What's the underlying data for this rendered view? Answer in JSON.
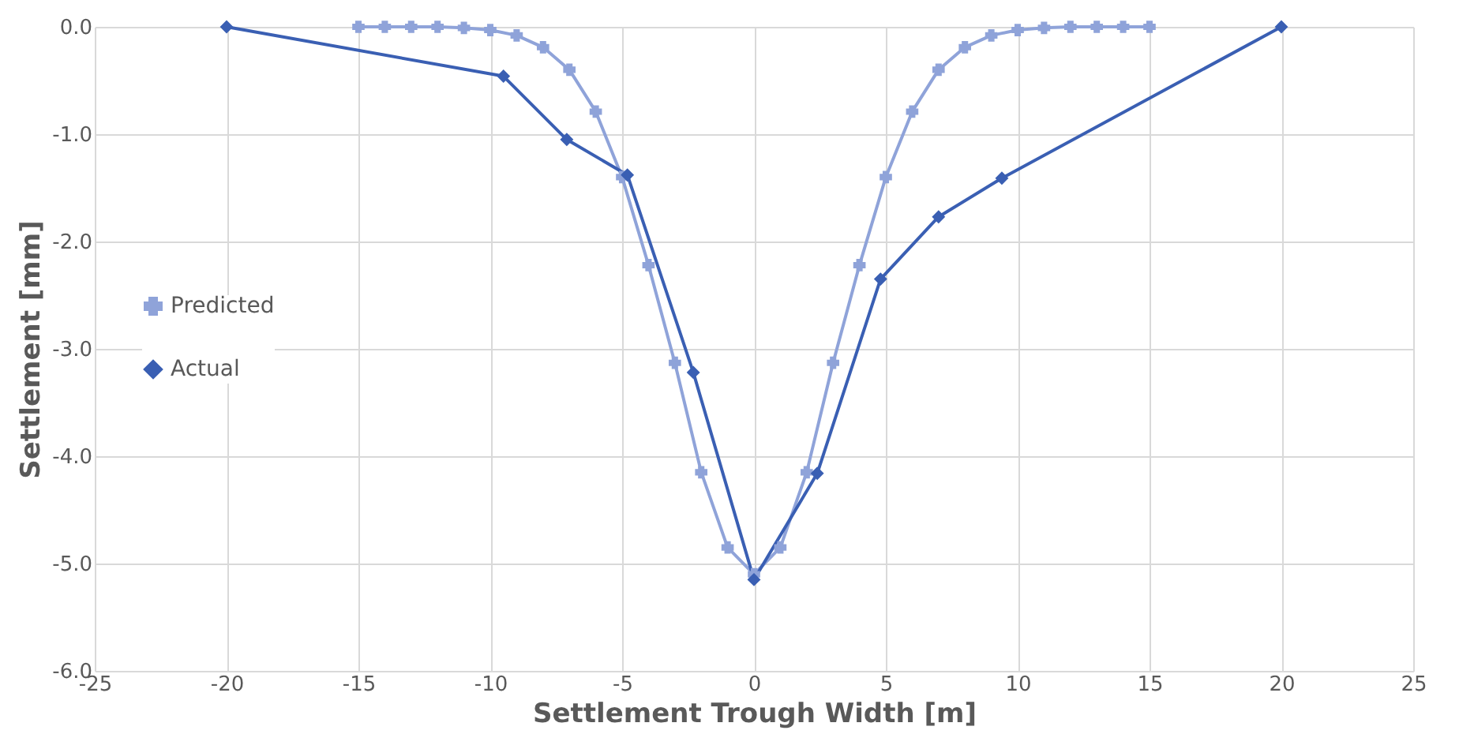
{
  "chart_data": {
    "type": "line",
    "xlabel": "Settlement Trough Width [m]",
    "ylabel": "Settlement [mm]",
    "xlim": [
      -25,
      25
    ],
    "xticks": [
      -25,
      -20,
      -15,
      -10,
      -5,
      0,
      5,
      10,
      15,
      20,
      25
    ],
    "ylim": [
      -6,
      0
    ],
    "yticks": [
      {
        "value": 0,
        "label": "0.0"
      },
      {
        "value": -1,
        "label": "-1.0"
      },
      {
        "value": -2,
        "label": "-2.0"
      },
      {
        "value": -3,
        "label": "-3.0"
      },
      {
        "value": -4,
        "label": "-4.0"
      },
      {
        "value": -5,
        "label": "-5.0"
      },
      {
        "value": -6,
        "label": "-6.0"
      }
    ],
    "grid": true,
    "legend": "left",
    "line_style": "solid",
    "series": [
      {
        "name": "Predicted",
        "color": "#8fa3d9",
        "marker": "cross",
        "x": [
          -15,
          -14,
          -13,
          -12,
          -11,
          -10,
          -9,
          -8,
          -7,
          -6,
          -5,
          -4,
          -3,
          -2,
          -1,
          0,
          1,
          2,
          3,
          4,
          5,
          6,
          7,
          8,
          9,
          10,
          11,
          12,
          13,
          14,
          15
        ],
        "values": [
          0,
          0,
          0,
          0,
          -0.01,
          -0.03,
          -0.08,
          -0.19,
          -0.4,
          -0.79,
          -1.4,
          -2.22,
          -3.13,
          -4.15,
          -4.85,
          -5.1,
          -4.85,
          -4.15,
          -3.13,
          -2.22,
          -1.4,
          -0.79,
          -0.4,
          -0.19,
          -0.08,
          -0.03,
          -0.01,
          0,
          0,
          0,
          0
        ]
      },
      {
        "name": "Actual",
        "color": "#3a5fb3",
        "marker": "diamond",
        "x": [
          -20,
          -9.5,
          -7.1,
          -4.8,
          -2.3,
          0,
          2.4,
          4.8,
          7,
          9.4,
          20
        ],
        "values": [
          0,
          -0.46,
          -1.05,
          -1.38,
          -3.22,
          -5.15,
          -4.16,
          -2.35,
          -1.77,
          -1.41,
          0
        ]
      }
    ]
  }
}
